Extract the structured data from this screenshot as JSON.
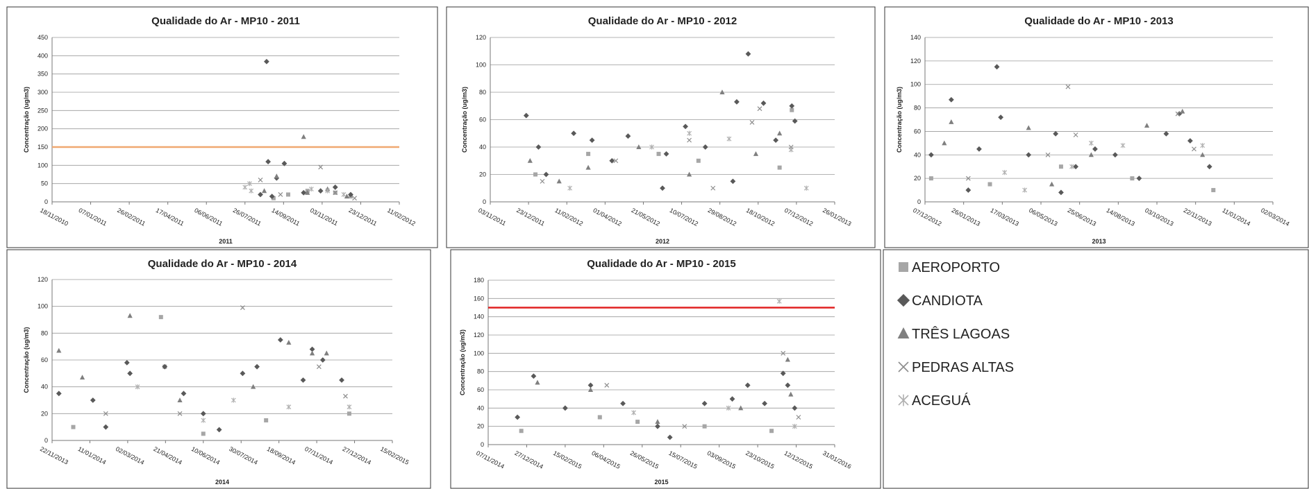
{
  "legend": [
    {
      "name": "AEROPORTO",
      "color": "#a6a6a6",
      "marker": "square"
    },
    {
      "name": "CANDIOTA",
      "color": "#595959",
      "marker": "diamond"
    },
    {
      "name": "TRÊS LAGOAS",
      "color": "#7f7f7f",
      "marker": "triangle"
    },
    {
      "name": "PEDRAS ALTAS",
      "color": "#8c8c8c",
      "marker": "x"
    },
    {
      "name": "ACEGUÁ",
      "color": "#b0b0b0",
      "marker": "asterisk"
    }
  ],
  "chart_data": [
    {
      "type": "scatter",
      "title": "Qualidade do Ar - MP10 - 2011",
      "ylabel": "Concentração (ug/m3)",
      "xlabel": "2011",
      "xlim": [
        "18/11/2010",
        "11/02/2012"
      ],
      "xticks": [
        "18/11/2010",
        "07/01/2011",
        "26/02/2011",
        "17/04/2011",
        "06/06/2011",
        "26/07/2011",
        "14/09/2011",
        "03/11/2011",
        "23/12/2011",
        "11/02/2012"
      ],
      "ylim": [
        0,
        450
      ],
      "yticks": [
        0,
        50,
        100,
        150,
        200,
        250,
        300,
        350,
        400,
        450
      ],
      "grid": true,
      "reference_line": {
        "value": 150,
        "color": "#f0a870"
      },
      "series": [
        {
          "x": [
            "20/09/2011",
            "15/10/2011",
            "20/11/2011",
            "10/12/2011",
            "01/09/2011"
          ],
          "values": [
            20,
            30,
            25,
            15,
            10
          ]
        },
        {
          "x": [
            "23/08/2011",
            "25/08/2011",
            "15/09/2011",
            "05/09/2011",
            "10/10/2011",
            "01/11/2011",
            "20/11/2011",
            "10/12/2011",
            "15/08/2011",
            "30/08/2011"
          ],
          "values": [
            384,
            110,
            105,
            65,
            25,
            30,
            40,
            20,
            20,
            15
          ]
        },
        {
          "x": [
            "10/10/2011",
            "05/09/2011",
            "20/08/2011",
            "15/10/2011",
            "10/11/2011",
            "05/12/2011"
          ],
          "values": [
            178,
            70,
            30,
            25,
            35,
            15
          ]
        },
        {
          "x": [
            "01/11/2011",
            "15/08/2011",
            "10/09/2011",
            "20/11/2011",
            "15/12/2011"
          ],
          "values": [
            95,
            60,
            20,
            25,
            10
          ]
        },
        {
          "x": [
            "26/07/2011",
            "01/08/2011",
            "03/08/2011",
            "20/10/2011",
            "10/11/2011",
            "01/12/2011"
          ],
          "values": [
            40,
            50,
            30,
            35,
            30,
            20
          ]
        }
      ]
    },
    {
      "type": "scatter",
      "title": "Qualidade do Ar - MP10 - 2012",
      "ylabel": "Concentração (ug/m3)",
      "xlabel": "2012",
      "xlim": [
        "03/11/2011",
        "26/01/2013"
      ],
      "xticks": [
        "03/11/2011",
        "23/12/2011",
        "11/02/2012",
        "01/04/2012",
        "21/05/2012",
        "10/07/2012",
        "29/08/2012",
        "18/10/2012",
        "07/12/2012",
        "26/01/2013"
      ],
      "ylim": [
        0,
        120
      ],
      "yticks": [
        0,
        20,
        40,
        60,
        80,
        100,
        120
      ],
      "grid": true,
      "series": [
        {
          "x": [
            "01/01/2012",
            "10/03/2012",
            "10/06/2012",
            "01/08/2012",
            "15/11/2012",
            "01/12/2012"
          ],
          "values": [
            20,
            35,
            35,
            30,
            25,
            67
          ]
        },
        {
          "x": [
            "20/12/2011",
            "05/01/2012",
            "20/02/2012",
            "15/03/2012",
            "10/04/2012",
            "01/05/2012",
            "20/06/2012",
            "15/07/2012",
            "10/08/2012",
            "20/09/2012",
            "05/10/2012",
            "25/10/2012",
            "10/11/2012",
            "01/12/2012",
            "05/12/2012",
            "15/01/2012",
            "15/06/2012",
            "15/09/2012"
          ],
          "values": [
            63,
            40,
            50,
            45,
            30,
            48,
            35,
            55,
            40,
            73,
            108,
            72,
            45,
            70,
            59,
            20,
            10,
            15
          ]
        },
        {
          "x": [
            "25/12/2011",
            "10/03/2012",
            "15/05/2012",
            "01/09/2012",
            "15/10/2012",
            "15/11/2012",
            "01/02/2012",
            "20/07/2012"
          ],
          "values": [
            30,
            25,
            40,
            80,
            35,
            50,
            15,
            20
          ]
        },
        {
          "x": [
            "10/01/2012",
            "15/04/2012",
            "20/07/2012",
            "10/10/2012",
            "20/10/2012",
            "30/11/2012",
            "20/08/2012"
          ],
          "values": [
            15,
            30,
            45,
            58,
            68,
            40,
            10
          ]
        },
        {
          "x": [
            "15/02/2012",
            "01/06/2012",
            "20/07/2012",
            "10/09/2012",
            "30/11/2012",
            "20/12/2012"
          ],
          "values": [
            10,
            40,
            50,
            46,
            38,
            10
          ]
        }
      ]
    },
    {
      "type": "scatter",
      "title": "Qualidade do Ar - MP10 - 2013",
      "ylabel": "Concentração (ug/m3)",
      "xlabel": "2013",
      "xlim": [
        "07/12/2012",
        "02/03/2014"
      ],
      "xticks": [
        "07/12/2012",
        "26/01/2013",
        "17/03/2013",
        "06/05/2013",
        "25/06/2013",
        "14/08/2013",
        "03/10/2013",
        "22/11/2013",
        "11/01/2014",
        "02/03/2014"
      ],
      "ylim": [
        0,
        140
      ],
      "yticks": [
        0,
        20,
        40,
        60,
        80,
        100,
        120,
        140
      ],
      "grid": true,
      "series": [
        {
          "x": [
            "15/12/2012",
            "01/03/2013",
            "01/06/2013",
            "01/09/2013",
            "15/12/2013"
          ],
          "values": [
            20,
            15,
            30,
            20,
            10
          ]
        },
        {
          "x": [
            "15/12/2012",
            "10/01/2013",
            "15/02/2013",
            "10/03/2013",
            "15/03/2013",
            "20/04/2013",
            "25/05/2013",
            "20/06/2013",
            "15/07/2013",
            "10/08/2013",
            "10/09/2013",
            "15/10/2013",
            "01/11/2013",
            "15/11/2013",
            "10/12/2013",
            "01/02/2013",
            "01/06/2013"
          ],
          "values": [
            40,
            87,
            45,
            115,
            72,
            40,
            58,
            30,
            45,
            40,
            20,
            58,
            75,
            52,
            30,
            10,
            8
          ]
        },
        {
          "x": [
            "01/01/2013",
            "10/01/2013",
            "20/04/2013",
            "10/07/2013",
            "20/09/2013",
            "05/11/2013",
            "01/12/2013",
            "20/05/2013"
          ],
          "values": [
            50,
            68,
            63,
            40,
            65,
            77,
            40,
            15
          ]
        },
        {
          "x": [
            "01/02/2013",
            "10/06/2013",
            "20/06/2013",
            "15/05/2013",
            "30/10/2013",
            "20/11/2013"
          ],
          "values": [
            20,
            98,
            57,
            40,
            75,
            45
          ]
        },
        {
          "x": [
            "20/03/2013",
            "15/06/2013",
            "10/07/2013",
            "20/08/2013",
            "01/12/2013",
            "15/04/2013"
          ],
          "values": [
            25,
            30,
            50,
            48,
            48,
            10
          ]
        }
      ]
    },
    {
      "type": "scatter",
      "title": "Qualidade do Ar - MP10 - 2014",
      "ylabel": "Concentração (ug/m3)",
      "xlabel": "2014",
      "xlim": [
        "22/11/2013",
        "15/02/2015"
      ],
      "xticks": [
        "22/11/2013",
        "11/01/2014",
        "02/03/2014",
        "21/04/2014",
        "10/06/2014",
        "30/07/2014",
        "18/09/2014",
        "07/11/2014",
        "27/12/2014",
        "15/02/2015"
      ],
      "ylim": [
        0,
        120
      ],
      "yticks": [
        0,
        20,
        40,
        60,
        80,
        100,
        120
      ],
      "grid": true,
      "series": [
        {
          "x": [
            "20/12/2013",
            "15/04/2014",
            "20/04/2014",
            "10/06/2014",
            "01/09/2014",
            "20/12/2014"
          ],
          "values": [
            10,
            92,
            55,
            5,
            15,
            20
          ]
        },
        {
          "x": [
            "01/12/2013",
            "15/01/2014",
            "01/03/2014",
            "05/03/2014",
            "20/04/2014",
            "15/05/2014",
            "10/06/2014",
            "01/08/2014",
            "20/08/2014",
            "20/09/2014",
            "20/10/2014",
            "01/11/2014",
            "15/11/2014",
            "10/12/2014",
            "01/02/2014",
            "01/07/2014"
          ],
          "values": [
            35,
            30,
            58,
            50,
            55,
            35,
            20,
            50,
            55,
            75,
            45,
            68,
            60,
            45,
            10,
            8
          ]
        },
        {
          "x": [
            "01/12/2013",
            "01/01/2014",
            "05/03/2014",
            "10/05/2014",
            "15/08/2014",
            "01/10/2014",
            "01/11/2014",
            "20/11/2014"
          ],
          "values": [
            67,
            47,
            93,
            30,
            40,
            73,
            65,
            65
          ]
        },
        {
          "x": [
            "01/02/2014",
            "01/08/2014",
            "10/11/2014",
            "15/12/2014",
            "10/05/2014"
          ],
          "values": [
            20,
            99,
            55,
            33,
            20
          ]
        },
        {
          "x": [
            "15/03/2014",
            "10/06/2014",
            "20/07/2014",
            "01/10/2014",
            "20/12/2014"
          ],
          "values": [
            40,
            15,
            30,
            25,
            25
          ]
        }
      ]
    },
    {
      "type": "scatter",
      "title": "Qualidade do Ar - MP10 - 2015",
      "ylabel": "Concentração (ug/m3)",
      "xlabel": "2015",
      "xlim": [
        "07/11/2014",
        "31/01/2016"
      ],
      "xticks": [
        "07/11/2014",
        "27/12/2014",
        "15/02/2015",
        "06/04/2015",
        "26/05/2015",
        "15/07/2015",
        "03/09/2015",
        "23/10/2015",
        "12/12/2015",
        "31/01/2016"
      ],
      "ylim": [
        0,
        180
      ],
      "yticks": [
        0,
        20,
        40,
        60,
        80,
        100,
        120,
        140,
        160,
        180
      ],
      "grid": true,
      "reference_line": {
        "value": 150,
        "color": "#e02020"
      },
      "series": [
        {
          "x": [
            "20/12/2014",
            "01/04/2015",
            "20/05/2015",
            "15/08/2015",
            "10/11/2015"
          ],
          "values": [
            15,
            30,
            25,
            20,
            15
          ]
        },
        {
          "x": [
            "15/12/2014",
            "05/01/2015",
            "15/02/2015",
            "20/03/2015",
            "01/05/2015",
            "15/06/2015",
            "15/08/2015",
            "20/09/2015",
            "10/10/2015",
            "01/11/2015",
            "25/11/2015",
            "01/12/2015",
            "10/12/2015",
            "01/07/2015"
          ],
          "values": [
            30,
            75,
            40,
            65,
            45,
            20,
            45,
            50,
            65,
            45,
            78,
            65,
            40,
            8
          ]
        },
        {
          "x": [
            "10/01/2015",
            "20/03/2015",
            "15/06/2015",
            "01/10/2015",
            "01/12/2015",
            "05/12/2015"
          ],
          "values": [
            68,
            60,
            25,
            40,
            93,
            55
          ]
        },
        {
          "x": [
            "10/04/2015",
            "20/07/2015",
            "25/11/2015",
            "15/12/2015"
          ],
          "values": [
            65,
            20,
            100,
            30
          ]
        },
        {
          "x": [
            "15/05/2015",
            "15/09/2015",
            "20/11/2015",
            "10/12/2015"
          ],
          "values": [
            35,
            40,
            157,
            20
          ]
        }
      ]
    }
  ]
}
